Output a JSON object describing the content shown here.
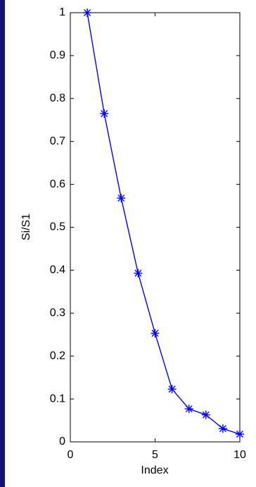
{
  "chart_data": {
    "type": "line",
    "x": [
      1,
      2,
      3,
      4,
      5,
      6,
      7,
      8,
      9,
      10
    ],
    "series": [
      {
        "values": [
          1.0,
          0.765,
          0.568,
          0.393,
          0.253,
          0.123,
          0.077,
          0.063,
          0.031,
          0.018
        ],
        "color": "#0000ff",
        "marker": "asterisk"
      }
    ],
    "xlabel": "Index",
    "ylabel": "Si/S1",
    "xlim": [
      0,
      10
    ],
    "ylim": [
      0,
      1
    ],
    "xticks": [
      0,
      5,
      10
    ],
    "xtick_labels": [
      "0",
      "5",
      "10"
    ],
    "yticks": [
      0,
      0.1,
      0.2,
      0.3,
      0.4,
      0.5,
      0.6,
      0.7,
      0.8,
      0.9,
      1
    ],
    "ytick_labels": [
      "0",
      "0.1",
      "0.2",
      "0.3",
      "0.4",
      "0.5",
      "0.6",
      "0.7",
      "0.8",
      "0.9",
      "1"
    ],
    "grid": false,
    "legend": "none"
  },
  "colors": {
    "frame_border": "#141473",
    "line": "#0000ff",
    "axes": "#000000",
    "background": "#ffffff"
  }
}
